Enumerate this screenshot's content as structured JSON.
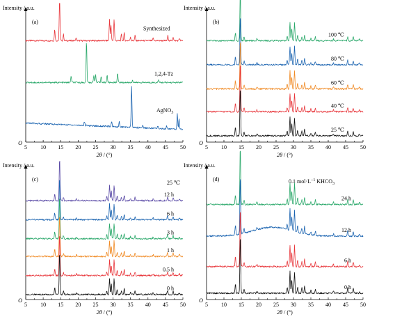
{
  "chart_data": [
    {
      "type": "line",
      "panel": "(a)",
      "ylabel": "Intensity / a.u.",
      "xlabel_italic": "2θ",
      "xlabel_unit": " / (°)",
      "xlim": [
        5,
        50
      ],
      "xticks": [
        "5",
        "10",
        "15",
        "20",
        "25",
        "30",
        "35",
        "40",
        "45",
        "50"
      ],
      "origin_label": "O",
      "series": [
        {
          "name": "Synthesized",
          "color": "#e8363b",
          "offset": 0.8,
          "peaks": [
            [
              13.3,
              0.09
            ],
            [
              14.7,
              0.33
            ],
            [
              15.8,
              0.05
            ],
            [
              19.4,
              0.02
            ],
            [
              29.0,
              0.17
            ],
            [
              29.4,
              0.12
            ],
            [
              30.3,
              0.17
            ],
            [
              32.4,
              0.05
            ],
            [
              33.2,
              0.06
            ],
            [
              35.0,
              0.03
            ],
            [
              36.3,
              0.04
            ],
            [
              41.5,
              0.02
            ],
            [
              45.7,
              0.04
            ],
            [
              47.2,
              0.03
            ],
            [
              49.0,
              0.02
            ]
          ]
        },
        {
          "name": "1,2,4-Tz",
          "color": "#2aa86a",
          "offset": 0.47,
          "peaks": [
            [
              18.0,
              0.05
            ],
            [
              22.4,
              0.33
            ],
            [
              24.5,
              0.06
            ],
            [
              25.0,
              0.06
            ],
            [
              26.6,
              0.05
            ],
            [
              28.3,
              0.06
            ],
            [
              31.3,
              0.08
            ],
            [
              35.6,
              0.02
            ],
            [
              43.0,
              0.02
            ]
          ]
        },
        {
          "name": "AgNO3",
          "color": "#1a63b0",
          "offset": 0.1,
          "baseline_tilt": 0.05,
          "peaks": [
            [
              21.8,
              0.03
            ],
            [
              29.6,
              0.04
            ],
            [
              31.8,
              0.04
            ],
            [
              35.3,
              0.33
            ],
            [
              38.5,
              0.02
            ],
            [
              42.8,
              0.02
            ],
            [
              45.3,
              0.02
            ],
            [
              48.4,
              0.12
            ],
            [
              48.9,
              0.08
            ]
          ]
        }
      ],
      "labels": [
        "Synthesized",
        "1,2,4-Tz",
        "AgNO",
        "3"
      ]
    },
    {
      "type": "line",
      "panel": "(b)",
      "ylabel": "Intensity / a.u.",
      "xlim": [
        5,
        50
      ],
      "series": [
        {
          "name": "100 ℃",
          "color": "#2aa86a",
          "offset": 0.8
        },
        {
          "name": "80 ℃",
          "color": "#1a63b0",
          "offset": 0.61
        },
        {
          "name": "60 ℃",
          "color": "#f08a24",
          "offset": 0.42
        },
        {
          "name": "40 ℃",
          "color": "#e8363b",
          "offset": 0.24
        },
        {
          "name": "25 ℃",
          "color": "#111111",
          "offset": 0.05
        }
      ]
    },
    {
      "type": "line",
      "panel": "(c)",
      "ylabel": "Intensity / a.u.",
      "header": "25 ℃",
      "xlim": [
        5,
        50
      ],
      "series": [
        {
          "name": "12 h",
          "color": "#5a4aa6",
          "offset": 0.78
        },
        {
          "name": "6 h",
          "color": "#1a63b0",
          "offset": 0.63
        },
        {
          "name": "3 h",
          "color": "#2aa86a",
          "offset": 0.48
        },
        {
          "name": "1 h",
          "color": "#f08a24",
          "offset": 0.34
        },
        {
          "name": "0.5 h",
          "color": "#e8363b",
          "offset": 0.19
        },
        {
          "name": "0 h",
          "color": "#111111",
          "offset": 0.04
        }
      ]
    },
    {
      "type": "line",
      "panel": "(d)",
      "ylabel": "Intensity / a.u.",
      "header_main": "0.1 mol·L",
      "header_sup": "−1",
      "header_tail": " KHCO",
      "header_sub": "3",
      "xlim": [
        5,
        50
      ],
      "series": [
        {
          "name": "24 h",
          "color": "#2aa86a",
          "offset": 0.75
        },
        {
          "name": "12 h",
          "color": "#1a63b0",
          "offset": 0.5,
          "hump": 0.07
        },
        {
          "name": "6 h",
          "color": "#e8363b",
          "offset": 0.26
        },
        {
          "name": "0 h",
          "color": "#111111",
          "offset": 0.05
        }
      ]
    }
  ],
  "common_peaks": [
    [
      13.3,
      0.09
    ],
    [
      14.7,
      0.55
    ],
    [
      15.8,
      0.04
    ],
    [
      19.5,
      0.02
    ],
    [
      28.2,
      0.05
    ],
    [
      29.0,
      0.2
    ],
    [
      29.5,
      0.13
    ],
    [
      30.3,
      0.2
    ],
    [
      31.2,
      0.06
    ],
    [
      32.4,
      0.05
    ],
    [
      33.2,
      0.07
    ],
    [
      35.0,
      0.03
    ],
    [
      36.3,
      0.04
    ],
    [
      41.5,
      0.02
    ],
    [
      45.6,
      0.05
    ],
    [
      47.2,
      0.04
    ],
    [
      49.0,
      0.02
    ]
  ]
}
